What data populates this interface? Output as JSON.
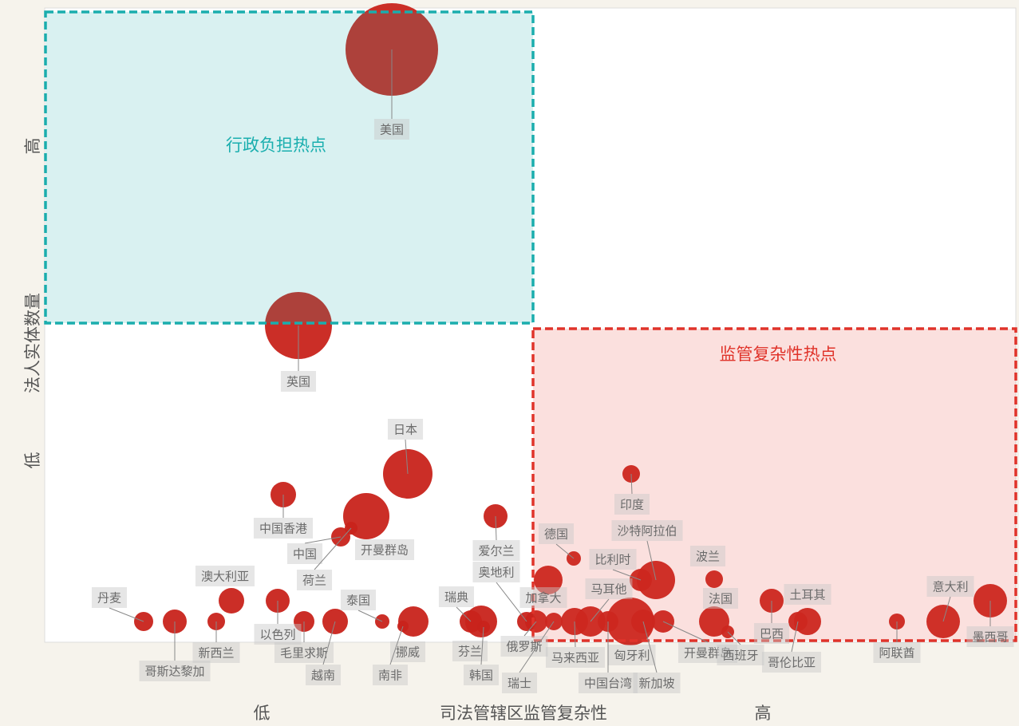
{
  "chart_data": {
    "type": "bubble",
    "xlabel": "司法管辖区监管复杂性",
    "ylabel": "法人实体数量",
    "annotations": [
      "行政负担热点",
      "监管复杂性热点"
    ],
    "color": "#c8231b",
    "xlim": [
      0,
      1217
    ],
    "ylim": [
      0,
      795
    ],
    "xticks": [
      {
        "value": 272,
        "label": "低"
      },
      {
        "value": 900,
        "label": "高"
      }
    ],
    "yticks": [
      {
        "value": 228,
        "label": "低"
      },
      {
        "value": 622,
        "label": "高"
      }
    ],
    "labels": [
      "美国",
      "英国",
      "日本",
      "开曼群岛",
      "中国香港",
      "中国",
      "荷兰",
      "爱尔兰",
      "印度",
      "德国",
      "比利时",
      "沙特阿拉伯",
      "波兰",
      "澳大利亚",
      "丹麦",
      "哥斯达黎加",
      "新西兰",
      "以色列",
      "毛里求斯",
      "越南",
      "泰国",
      "挪威",
      "南非",
      "瑞典",
      "芬兰",
      "韩国",
      "奥地利",
      "俄罗斯",
      "加拿大",
      "瑞士",
      "马来西亚",
      "马耳他",
      "中国台湾",
      "匈牙利",
      "新加坡",
      "开曼群岛",
      "法国",
      "西班牙",
      "巴西",
      "哥伦比亚",
      "土耳其",
      "阿联酋",
      "意大利",
      "墨西哥"
    ],
    "x": [
      435,
      318,
      455,
      403,
      299,
      371,
      384,
      565,
      735,
      663,
      747,
      766,
      839,
      234,
      124,
      163,
      215,
      292,
      325,
      364,
      423,
      462,
      449,
      534,
      547,
      550,
      604,
      616,
      631,
      638,
      664,
      684,
      706,
      734,
      750,
      775,
      839,
      856,
      911,
      944,
      956,
      1068,
      1126,
      1185
    ],
    "values": [
      743,
      397,
      211,
      158,
      185,
      132,
      143,
      158,
      211,
      105,
      78,
      78,
      79,
      52,
      26,
      26,
      26,
      52,
      26,
      26,
      26,
      26,
      20,
      26,
      26,
      19,
      26,
      26,
      78,
      26,
      26,
      26,
      26,
      26,
      26,
      26,
      26,
      13,
      52,
      26,
      26,
      26,
      26,
      52
    ],
    "sizes": [
      58,
      42,
      31,
      29,
      16,
      12,
      8,
      15,
      11,
      9,
      14,
      24,
      11,
      16,
      12,
      15,
      11,
      15,
      13,
      16,
      9,
      19,
      7,
      14,
      20,
      8,
      12,
      14,
      18,
      11,
      17,
      19,
      13,
      30,
      15,
      14,
      19,
      8,
      15,
      12,
      17,
      10,
      21,
      21
    ]
  }
}
